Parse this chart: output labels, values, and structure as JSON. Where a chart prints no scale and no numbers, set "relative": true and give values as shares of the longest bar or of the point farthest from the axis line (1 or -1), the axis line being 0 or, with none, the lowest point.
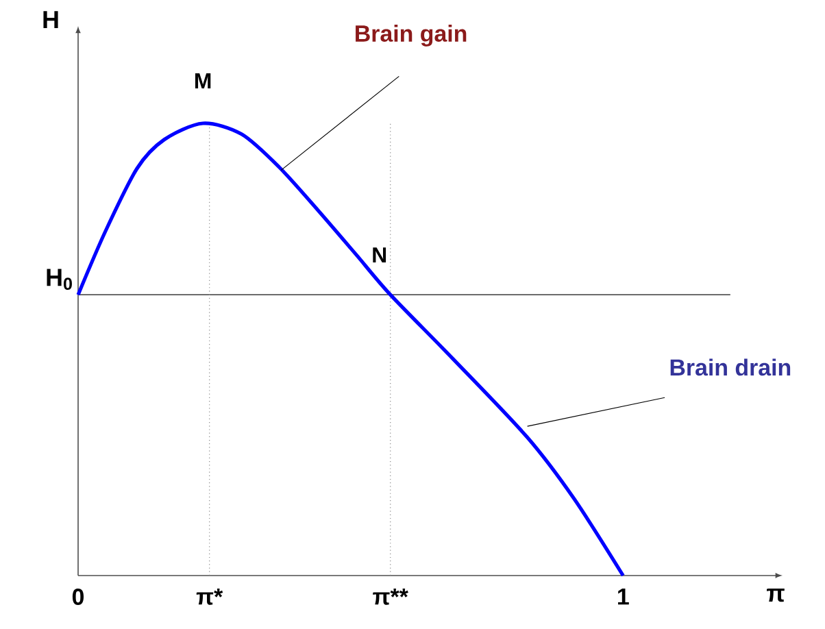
{
  "chart_data": {
    "type": "line",
    "relative": true,
    "xlabel": "π",
    "ylabel": "H",
    "xlim": [
      0,
      1.28
    ],
    "xticks": [
      0,
      {
        "value": 0.241,
        "label": "π*"
      },
      {
        "value": 0.573,
        "label": "π**"
      },
      1
    ],
    "series": [
      {
        "color": "#0000ff",
        "x": [
          0,
          0.05,
          0.108,
          0.158,
          0.229,
          0.3,
          0.369,
          0.44,
          0.51,
          0.573,
          0.688,
          0.824,
          0.91,
          1
        ],
        "values": [
          0.621,
          0.761,
          0.9,
          0.964,
          1,
          0.976,
          0.903,
          0.808,
          0.71,
          0.621,
          0.479,
          0.306,
          0.17,
          0
        ]
      }
    ],
    "ref_lines": [
      {
        "axis": "y",
        "value": 0.621,
        "label": "H$_{0}$",
        "line_style": "solid",
        "color": "#555555"
      },
      {
        "axis": "x",
        "value": 0.241,
        "label": null,
        "line_style": "dotted",
        "color": "#888888"
      },
      {
        "axis": "x",
        "value": 0.573,
        "label": null,
        "line_style": "dotted",
        "color": "#888888"
      }
    ],
    "annotations": [
      {
        "text": "M",
        "x": 0.229,
        "y": 1
      },
      {
        "text": "N",
        "x": 0.573,
        "y": 0.621
      },
      "Brain gain",
      "Brain drain"
    ],
    "marker": "none",
    "line_style": "solid"
  }
}
